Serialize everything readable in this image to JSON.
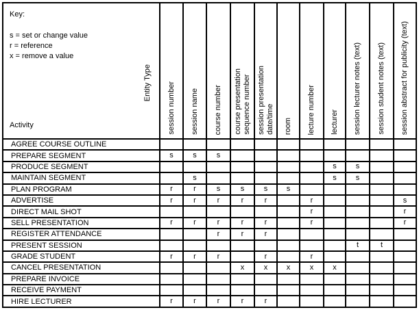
{
  "key": {
    "title": "Key:",
    "lines": [
      "s = set or change value",
      "r = reference",
      "x = remove a value"
    ]
  },
  "axes": {
    "column_axis_label": "Entity Type",
    "row_axis_label": "Activity"
  },
  "columns": [
    "session number",
    "session name",
    "course number",
    "course presentation\nsequence number",
    "session presentation\ndate/time",
    "room",
    "lecture number",
    "lecturer",
    "session lecturer notes (text)",
    "session student notes (text)",
    "session abstract for publicity (text)"
  ],
  "matrix": {
    "rows": [
      {
        "activity": "AGREE COURSE OUTLINE",
        "cells": [
          "",
          "",
          "",
          "",
          "",
          "",
          "",
          "",
          "",
          "",
          ""
        ]
      },
      {
        "activity": "PREPARE SEGMENT",
        "cells": [
          "s",
          "s",
          "s",
          "",
          "",
          "",
          "",
          "",
          "",
          "",
          ""
        ]
      },
      {
        "activity": "PRODUCE SEGMENT",
        "cells": [
          "",
          "",
          "",
          "",
          "",
          "",
          "",
          "s",
          "s",
          "",
          ""
        ]
      },
      {
        "activity": "MAINTAIN SEGMENT",
        "cells": [
          "",
          "s",
          "",
          "",
          "",
          "",
          "",
          "s",
          "s",
          "",
          ""
        ]
      },
      {
        "activity": "PLAN PROGRAM",
        "cells": [
          "r",
          "r",
          "s",
          "s",
          "s",
          "s",
          "",
          "",
          "",
          "",
          ""
        ]
      },
      {
        "activity": "ADVERTISE",
        "cells": [
          "r",
          "r",
          "r",
          "r",
          "r",
          "",
          "r",
          "",
          "",
          "",
          "s"
        ]
      },
      {
        "activity": "DIRECT MAIL SHOT",
        "cells": [
          "",
          "",
          "",
          "",
          "",
          "",
          "r",
          "",
          "",
          "",
          "r"
        ]
      },
      {
        "activity": "SELL PRESENTATION",
        "cells": [
          "r",
          "r",
          "r",
          "r",
          "r",
          "",
          "r",
          "",
          "",
          "",
          "r"
        ]
      },
      {
        "activity": "REGISTER ATTENDANCE",
        "cells": [
          "",
          "",
          "r",
          "r",
          "r",
          "",
          "",
          "",
          "",
          "",
          ""
        ]
      },
      {
        "activity": "PRESENT SESSION",
        "cells": [
          "",
          "",
          "",
          "",
          "",
          "",
          "",
          "",
          "t",
          "t",
          ""
        ]
      },
      {
        "activity": "GRADE STUDENT",
        "cells": [
          "r",
          "r",
          "r",
          "",
          "r",
          "",
          "r",
          "",
          "",
          "",
          ""
        ]
      },
      {
        "activity": "CANCEL PRESENTATION",
        "cells": [
          "",
          "",
          "",
          "x",
          "x",
          "x",
          "x",
          "x",
          "",
          "",
          ""
        ]
      },
      {
        "activity": "PREPARE INVOICE",
        "cells": [
          "",
          "",
          "",
          "",
          "",
          "",
          "",
          "",
          "",
          "",
          ""
        ]
      },
      {
        "activity": "RECEIVE PAYMENT",
        "cells": [
          "",
          "",
          "",
          "",
          "",
          "",
          "",
          "",
          "",
          "",
          ""
        ]
      },
      {
        "activity": "HIRE LECTURER",
        "cells": [
          "r",
          "r",
          "r",
          "r",
          "r",
          "",
          "",
          "",
          "",
          "",
          ""
        ]
      }
    ]
  },
  "colors": {
    "text": "#000000",
    "grid_lines": "#000000",
    "background": "#ffffff"
  }
}
